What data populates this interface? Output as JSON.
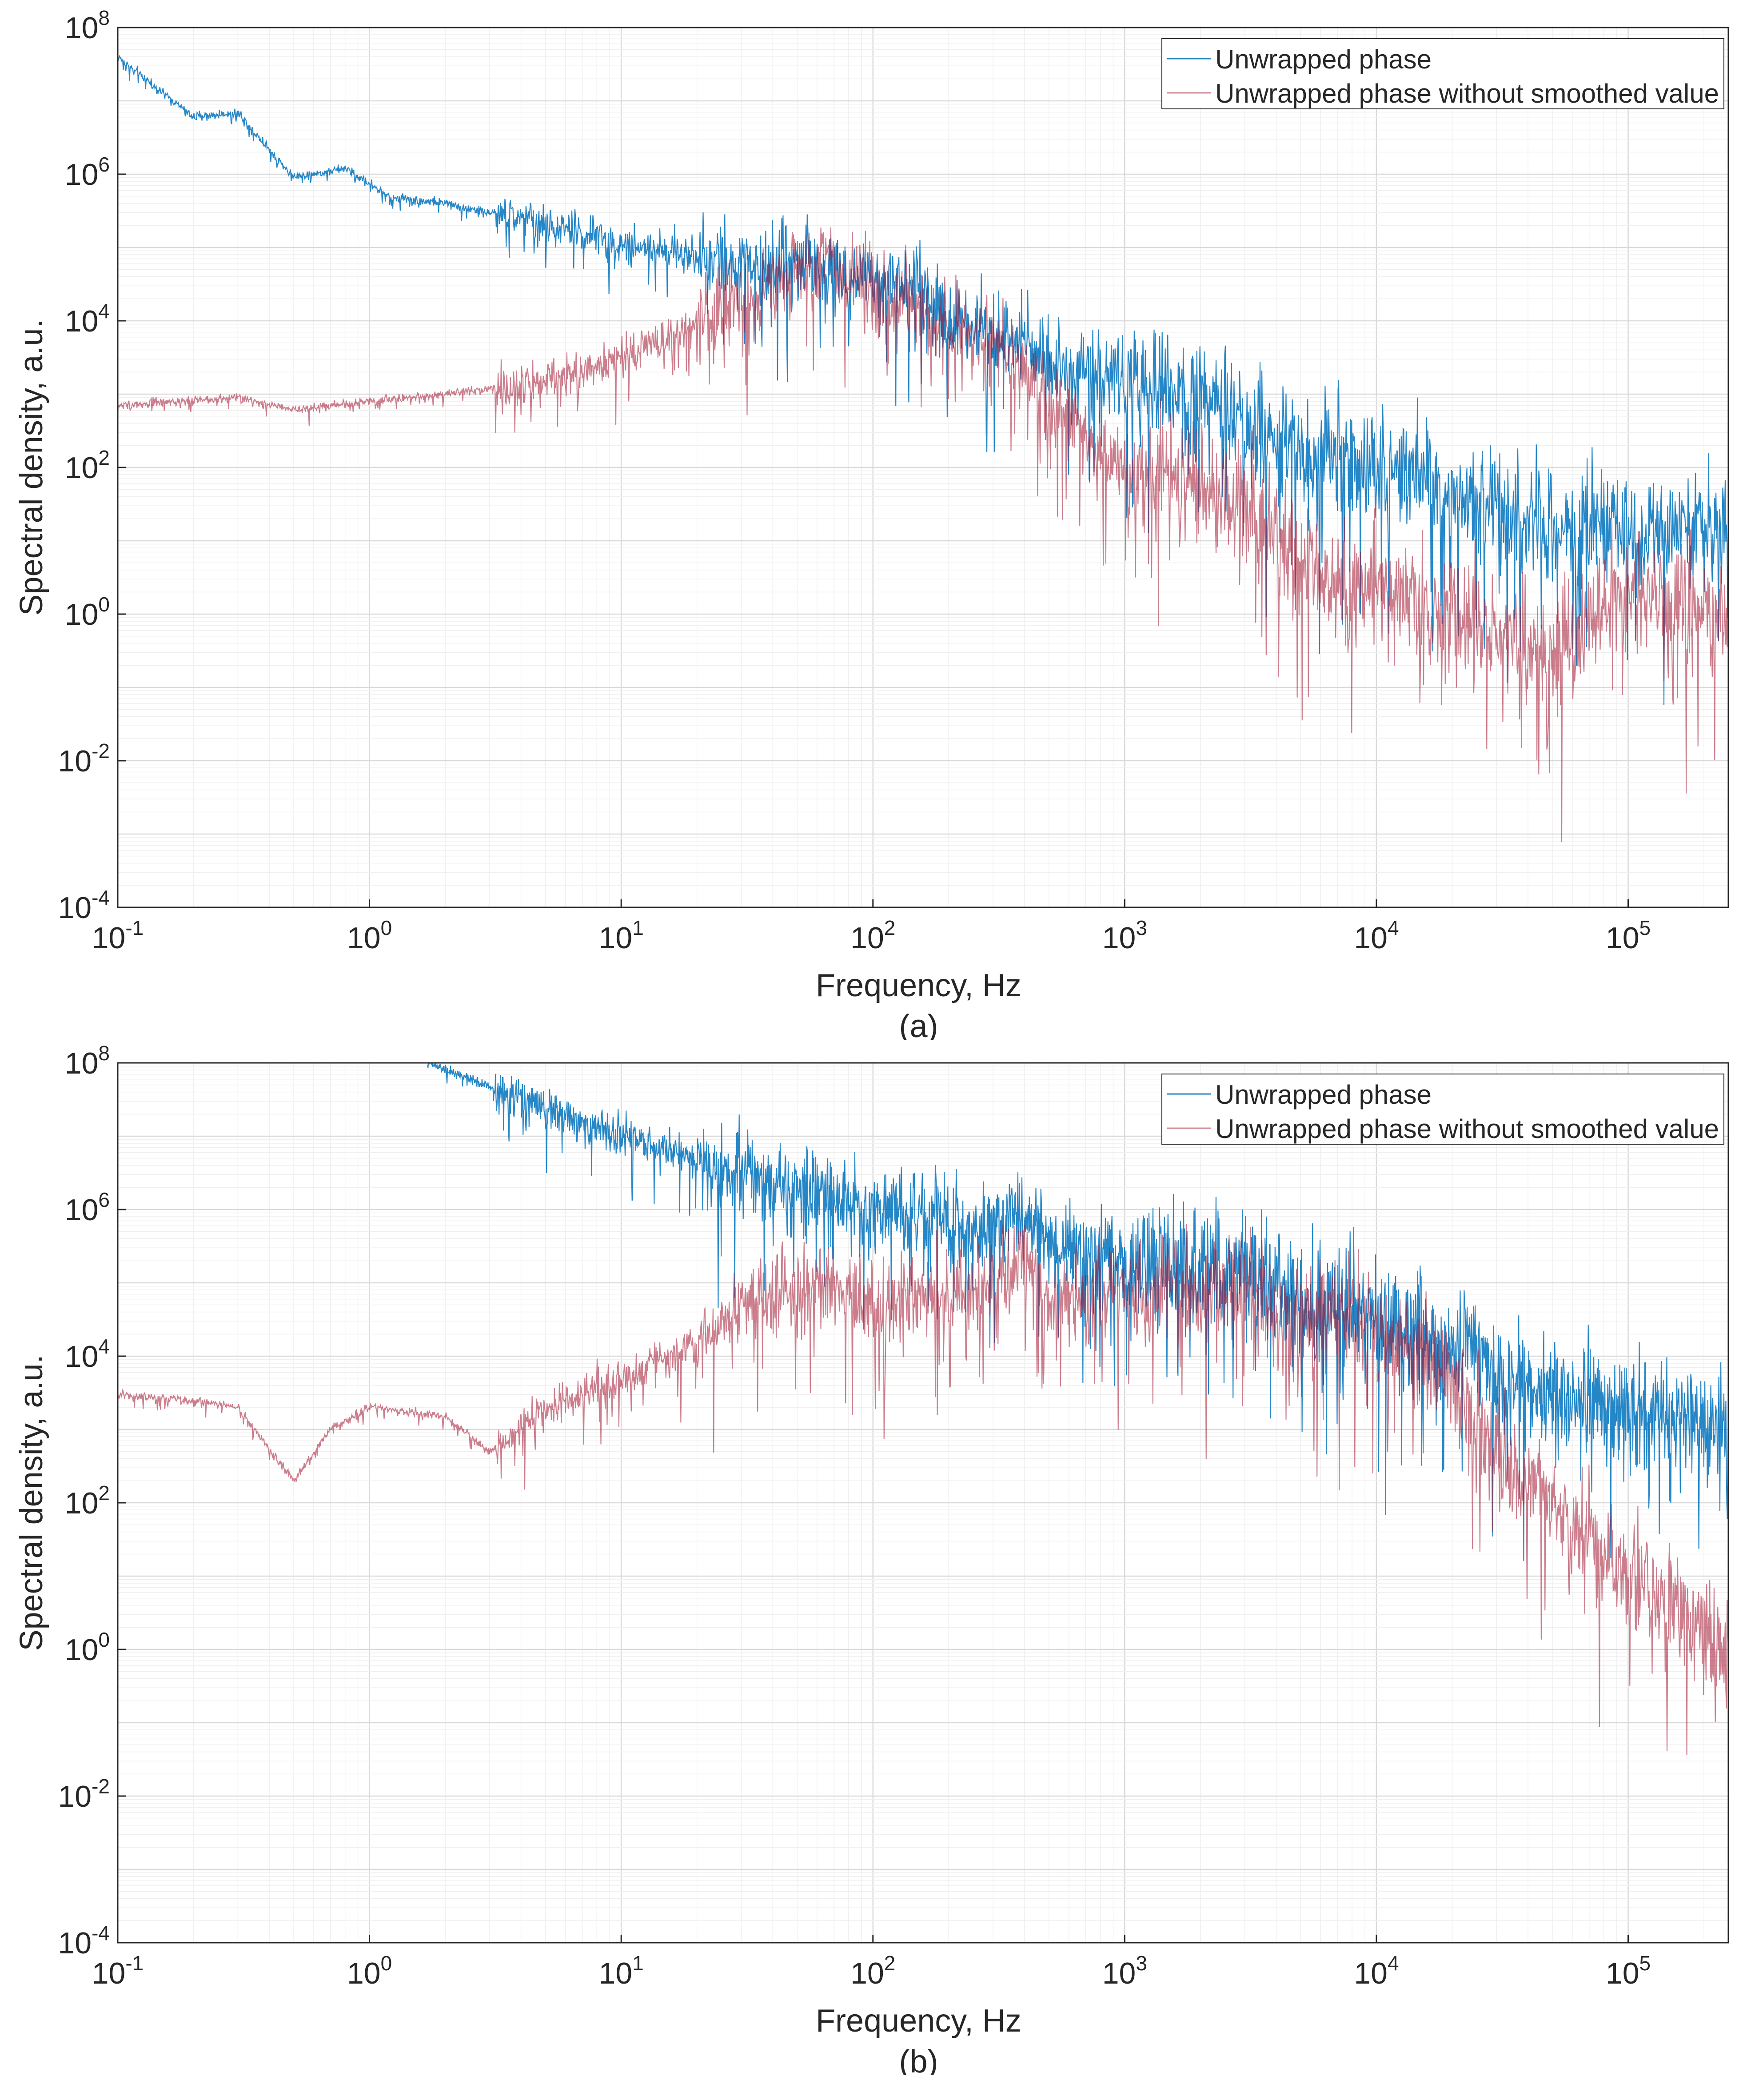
{
  "colors": {
    "series_1": "#0072BD",
    "series_2": "#A2142F",
    "axis": "#262626",
    "grid_major": "#d9d9d9",
    "grid_minor": "#efefef"
  },
  "chart_data": [
    {
      "type": "line",
      "panel_label": "(a)",
      "xlabel": "Frequency, Hz",
      "ylabel": "Spectral density, a.u.",
      "xscale": "log",
      "yscale": "log",
      "xlim": [
        0.1,
        250000
      ],
      "ylim": [
        0.0001,
        100000000
      ],
      "grid": true,
      "legend_position": "top-right",
      "x_ticks": [
        {
          "base": "10",
          "exp": "-1",
          "value": 0.1
        },
        {
          "base": "10",
          "exp": "0",
          "value": 1
        },
        {
          "base": "10",
          "exp": "1",
          "value": 10
        },
        {
          "base": "10",
          "exp": "2",
          "value": 100
        },
        {
          "base": "10",
          "exp": "3",
          "value": 1000
        },
        {
          "base": "10",
          "exp": "4",
          "value": 10000
        },
        {
          "base": "10",
          "exp": "5",
          "value": 100000
        }
      ],
      "y_ticks": [
        {
          "base": "10",
          "exp": "-4",
          "value": 0.0001
        },
        {
          "base": "10",
          "exp": "-2",
          "value": 0.01
        },
        {
          "base": "10",
          "exp": "0",
          "value": 1
        },
        {
          "base": "10",
          "exp": "2",
          "value": 100
        },
        {
          "base": "10",
          "exp": "4",
          "value": 10000
        },
        {
          "base": "10",
          "exp": "6",
          "value": 1000000
        },
        {
          "base": "10",
          "exp": "8",
          "value": 100000000
        }
      ],
      "series": [
        {
          "name": "Unwrapped phase",
          "color": "#0072BD",
          "x": [
            0.1,
            0.2,
            0.3,
            0.5,
            0.8,
            1.2,
            2,
            3,
            5,
            8,
            12,
            20,
            30,
            50,
            70,
            100,
            150,
            200,
            300,
            500,
            700,
            1000,
            2000,
            3000,
            5000,
            10000,
            20000,
            50000,
            100000,
            250000
          ],
          "y": [
            40000000,
            6000000,
            7000000,
            900000,
            1200000,
            500000,
            400000,
            300000,
            200000,
            150000,
            100000,
            80000,
            70000,
            60000,
            55000,
            40000,
            20000,
            10000,
            8000,
            3000,
            2000,
            1500,
            800,
            400,
            200,
            100,
            50,
            20,
            15,
            12
          ]
        },
        {
          "name": "Unwrapped phase without smoothed value",
          "color": "#A2142F",
          "x": [
            0.1,
            0.3,
            0.5,
            1,
            2,
            3,
            5,
            8,
            12,
            20,
            30,
            50,
            70,
            100,
            150,
            200,
            300,
            500,
            700,
            1000,
            2000,
            3000,
            5000,
            10000,
            20000,
            50000,
            100000,
            250000
          ],
          "y": [
            700,
            900,
            600,
            800,
            1000,
            1200,
            1500,
            2500,
            4000,
            8000,
            20000,
            50000,
            60000,
            30000,
            15000,
            8000,
            5000,
            1000,
            300,
            100,
            50,
            30,
            5,
            2,
            1,
            0.3,
            2,
            1
          ]
        }
      ]
    },
    {
      "type": "line",
      "panel_label": "(b)",
      "xlabel": "Frequency, Hz",
      "ylabel": "Spectral density, a.u.",
      "xscale": "log",
      "yscale": "log",
      "xlim": [
        0.1,
        250000
      ],
      "ylim": [
        0.0001,
        100000000
      ],
      "grid": true,
      "legend_position": "top-right",
      "x_ticks": [
        {
          "base": "10",
          "exp": "-1",
          "value": 0.1
        },
        {
          "base": "10",
          "exp": "0",
          "value": 1
        },
        {
          "base": "10",
          "exp": "1",
          "value": 10
        },
        {
          "base": "10",
          "exp": "2",
          "value": 100
        },
        {
          "base": "10",
          "exp": "3",
          "value": 1000
        },
        {
          "base": "10",
          "exp": "4",
          "value": 10000
        },
        {
          "base": "10",
          "exp": "5",
          "value": 100000
        }
      ],
      "y_ticks": [
        {
          "base": "10",
          "exp": "-4",
          "value": 0.0001
        },
        {
          "base": "10",
          "exp": "-2",
          "value": 0.01
        },
        {
          "base": "10",
          "exp": "0",
          "value": 1
        },
        {
          "base": "10",
          "exp": "2",
          "value": 100
        },
        {
          "base": "10",
          "exp": "4",
          "value": 10000
        },
        {
          "base": "10",
          "exp": "6",
          "value": 1000000
        },
        {
          "base": "10",
          "exp": "8",
          "value": 100000000
        }
      ],
      "series": [
        {
          "name": "Unwrapped phase",
          "color": "#0072BD",
          "x": [
            1.7,
            10,
            100,
            300,
            350,
            400,
            450,
            500,
            1000,
            2000,
            3000,
            5000,
            10000,
            20000,
            23000,
            30000,
            100000,
            250000
          ],
          "y": [
            100000000,
            10000000,
            1000000,
            500000,
            1000000,
            500000,
            800000,
            300000,
            200000,
            150000,
            150000,
            50000,
            40000,
            10000,
            20000,
            5000,
            2000,
            1000
          ]
        },
        {
          "name": "Unwrapped phase without smoothed value",
          "color": "#A2142F",
          "x": [
            0.1,
            0.2,
            0.3,
            0.5,
            0.7,
            1,
            2,
            3,
            5,
            10,
            20,
            30,
            50,
            70,
            100,
            200,
            300,
            400,
            500,
            1000,
            2000,
            3000,
            5000,
            10000,
            20000,
            23000,
            30000,
            100000,
            250000
          ],
          "y": [
            3000,
            2500,
            2000,
            200,
            1000,
            2000,
            1500,
            500,
            2000,
            5000,
            15000,
            50000,
            80000,
            100000,
            50000,
            80000,
            100000,
            200000,
            60000,
            80000,
            60000,
            100000,
            30000,
            30000,
            5000,
            1500,
            500,
            10,
            1
          ]
        }
      ]
    }
  ]
}
